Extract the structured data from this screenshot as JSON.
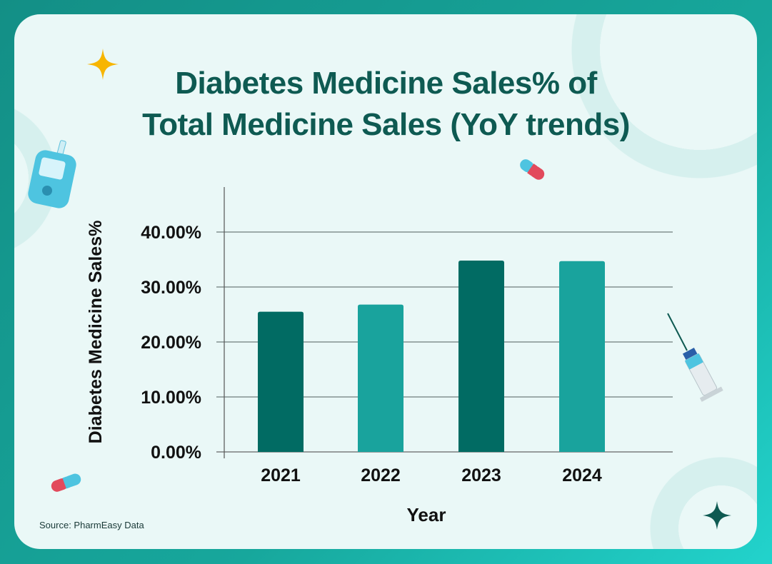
{
  "title_line1": "Diabetes Medicine Sales% of",
  "title_line2": "Total Medicine Sales (YoY trends)",
  "source": "Source: PharmEasy Data",
  "colors": {
    "dark_bar": "#016b63",
    "light_bar": "#19a39d",
    "title": "#0e5a52"
  },
  "chart_data": {
    "type": "bar",
    "title": "Diabetes Medicine Sales% of Total Medicine Sales (YoY trends)",
    "xlabel": "Year",
    "ylabel": "Diabetes Medicine Sales%",
    "categories": [
      "2021",
      "2022",
      "2023",
      "2024"
    ],
    "values": [
      25.5,
      26.8,
      34.8,
      34.7
    ],
    "bar_colors": [
      "#016b63",
      "#19a39d",
      "#016b63",
      "#19a39d"
    ],
    "ylim": [
      0,
      40
    ],
    "yticks": [
      "0.00%",
      "10.00%",
      "20.00%",
      "30.00%",
      "40.00%"
    ],
    "grid": true,
    "legend": "none"
  },
  "decorations": [
    "sparkle-icon",
    "glucose-meter-icon",
    "capsule-icon",
    "syringe-icon"
  ]
}
